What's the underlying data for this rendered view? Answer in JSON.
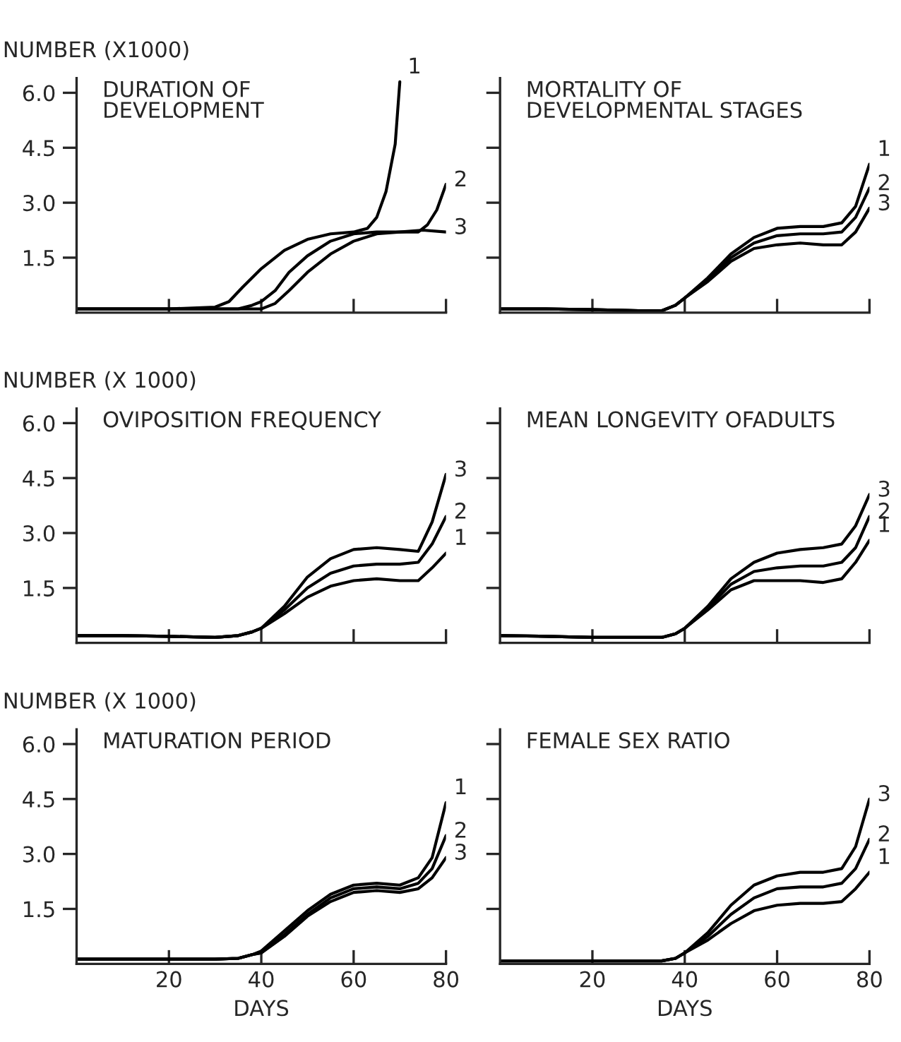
{
  "chart_data": [
    {
      "type": "line",
      "title": "DURATION OF\nDEVELOPMENT",
      "ylabel": "NUMBER (X1000)",
      "xlim": [
        0,
        80
      ],
      "ylim": [
        0,
        6.4
      ],
      "xticks": [
        {
          "value": 20,
          "label": null
        },
        {
          "value": 40,
          "label": null
        },
        {
          "value": 60,
          "label": null
        },
        {
          "value": 80,
          "label": null
        }
      ],
      "yticks": [
        {
          "value": 1.5,
          "label": "1.5"
        },
        {
          "value": 3,
          "label": "3.0"
        },
        {
          "value": 4.5,
          "label": "4.5"
        },
        {
          "value": 6,
          "label": "6.0"
        }
      ],
      "tick_labels": "y",
      "grid": false,
      "legend": false,
      "series": [
        {
          "name": "1",
          "color": "#000000",
          "x": [
            0,
            10,
            20,
            30,
            33,
            36,
            40,
            45,
            50,
            55,
            60,
            63,
            65,
            67,
            69,
            70
          ],
          "values": [
            0.1,
            0.1,
            0.1,
            0.15,
            0.3,
            0.7,
            1.2,
            1.7,
            2.0,
            2.15,
            2.2,
            2.3,
            2.6,
            3.3,
            4.6,
            6.3
          ]
        },
        {
          "name": "2",
          "color": "#000000",
          "x": [
            0,
            10,
            20,
            30,
            35,
            38,
            40,
            43,
            46,
            50,
            55,
            60,
            65,
            70,
            74,
            76,
            78,
            80
          ],
          "values": [
            0.1,
            0.1,
            0.1,
            0.1,
            0.1,
            0.2,
            0.3,
            0.6,
            1.1,
            1.55,
            1.95,
            2.15,
            2.2,
            2.2,
            2.2,
            2.4,
            2.8,
            3.5
          ]
        },
        {
          "name": "3",
          "color": "#000000",
          "x": [
            0,
            10,
            20,
            30,
            35,
            40,
            43,
            46,
            50,
            55,
            60,
            65,
            70,
            75,
            80
          ],
          "values": [
            0.1,
            0.1,
            0.1,
            0.1,
            0.1,
            0.1,
            0.25,
            0.6,
            1.1,
            1.6,
            1.95,
            2.15,
            2.2,
            2.25,
            2.2
          ]
        }
      ]
    },
    {
      "type": "line",
      "title": "MORTALITY OF\nDEVELOPMENTAL STAGES",
      "x": [
        0,
        10,
        20,
        30,
        35,
        38,
        40,
        45,
        50,
        55,
        60,
        65,
        70,
        74,
        77,
        80
      ],
      "xlim": [
        0,
        80
      ],
      "ylim": [
        0,
        6.4
      ],
      "xticks": [
        {
          "value": 20,
          "label": null
        },
        {
          "value": 40,
          "label": null
        },
        {
          "value": 60,
          "label": null
        },
        {
          "value": 80,
          "label": null
        }
      ],
      "yticks": [
        {
          "value": 1.5,
          "label": null
        },
        {
          "value": 3,
          "label": null
        },
        {
          "value": 4.5,
          "label": null
        },
        {
          "value": 6,
          "label": null
        }
      ],
      "tick_labels": false,
      "grid": false,
      "legend": false,
      "series": [
        {
          "name": "1",
          "color": "#000000",
          "values": [
            0.1,
            0.1,
            0.08,
            0.05,
            0.05,
            0.2,
            0.4,
            0.95,
            1.6,
            2.05,
            2.3,
            2.35,
            2.35,
            2.45,
            2.9,
            4.05
          ]
        },
        {
          "name": "2",
          "color": "#000000",
          "values": [
            0.1,
            0.1,
            0.08,
            0.05,
            0.05,
            0.2,
            0.4,
            0.9,
            1.5,
            1.9,
            2.1,
            2.15,
            2.15,
            2.2,
            2.6,
            3.4
          ]
        },
        {
          "name": "3",
          "color": "#000000",
          "values": [
            0.1,
            0.1,
            0.08,
            0.05,
            0.05,
            0.2,
            0.4,
            0.85,
            1.4,
            1.75,
            1.85,
            1.9,
            1.85,
            1.85,
            2.2,
            2.85
          ]
        }
      ]
    },
    {
      "type": "line",
      "title": "OVIPOSITION FREQUENCY",
      "ylabel": "NUMBER (X 1000)",
      "x": [
        0,
        10,
        20,
        30,
        35,
        38,
        40,
        45,
        50,
        55,
        60,
        65,
        70,
        74,
        77,
        80
      ],
      "xlim": [
        0,
        80
      ],
      "ylim": [
        0,
        6.4
      ],
      "xticks": [
        {
          "value": 20,
          "label": null
        },
        {
          "value": 40,
          "label": null
        },
        {
          "value": 60,
          "label": null
        },
        {
          "value": 80,
          "label": null
        }
      ],
      "yticks": [
        {
          "value": 1.5,
          "label": "1.5"
        },
        {
          "value": 3,
          "label": "3.0"
        },
        {
          "value": 4.5,
          "label": "4.5"
        },
        {
          "value": 6,
          "label": "6.0"
        }
      ],
      "tick_labels": "y",
      "grid": false,
      "legend": false,
      "series": [
        {
          "name": "1",
          "color": "#000000",
          "values": [
            0.2,
            0.2,
            0.18,
            0.15,
            0.2,
            0.3,
            0.4,
            0.8,
            1.25,
            1.55,
            1.7,
            1.75,
            1.7,
            1.7,
            2.05,
            2.45
          ]
        },
        {
          "name": "2",
          "color": "#000000",
          "values": [
            0.2,
            0.2,
            0.18,
            0.15,
            0.2,
            0.3,
            0.4,
            0.9,
            1.5,
            1.9,
            2.1,
            2.15,
            2.15,
            2.2,
            2.7,
            3.45
          ]
        },
        {
          "name": "3",
          "color": "#000000",
          "values": [
            0.2,
            0.2,
            0.18,
            0.15,
            0.2,
            0.3,
            0.4,
            1.0,
            1.8,
            2.3,
            2.55,
            2.6,
            2.55,
            2.5,
            3.3,
            4.6
          ]
        }
      ]
    },
    {
      "type": "line",
      "title": "MEAN LONGEVITY OFADULTS",
      "x": [
        0,
        10,
        20,
        30,
        35,
        38,
        40,
        45,
        50,
        55,
        60,
        65,
        70,
        74,
        77,
        80
      ],
      "xlim": [
        0,
        80
      ],
      "ylim": [
        0,
        6.4
      ],
      "xticks": [
        {
          "value": 20,
          "label": null
        },
        {
          "value": 40,
          "label": null
        },
        {
          "value": 60,
          "label": null
        },
        {
          "value": 80,
          "label": null
        }
      ],
      "yticks": [
        {
          "value": 1.5,
          "label": null
        },
        {
          "value": 3,
          "label": null
        },
        {
          "value": 4.5,
          "label": null
        },
        {
          "value": 6,
          "label": null
        }
      ],
      "tick_labels": false,
      "grid": false,
      "legend": false,
      "series": [
        {
          "name": "1",
          "color": "#000000",
          "values": [
            0.2,
            0.18,
            0.15,
            0.15,
            0.15,
            0.25,
            0.4,
            0.9,
            1.45,
            1.7,
            1.7,
            1.7,
            1.65,
            1.75,
            2.2,
            2.8
          ]
        },
        {
          "name": "2",
          "color": "#000000",
          "values": [
            0.2,
            0.18,
            0.15,
            0.15,
            0.15,
            0.25,
            0.4,
            0.95,
            1.6,
            1.95,
            2.05,
            2.1,
            2.1,
            2.2,
            2.6,
            3.45
          ]
        },
        {
          "name": "3",
          "color": "#000000",
          "values": [
            0.2,
            0.18,
            0.15,
            0.15,
            0.15,
            0.25,
            0.4,
            1.0,
            1.75,
            2.2,
            2.45,
            2.55,
            2.6,
            2.7,
            3.2,
            4.05
          ]
        }
      ]
    },
    {
      "type": "line",
      "title": "MATURATION PERIOD",
      "ylabel": "NUMBER (X 1000)",
      "xlabel": "DAYS",
      "x": [
        0,
        10,
        20,
        30,
        35,
        38,
        40,
        45,
        50,
        55,
        60,
        65,
        70,
        74,
        77,
        80
      ],
      "xlim": [
        0,
        80
      ],
      "ylim": [
        0,
        6.4
      ],
      "xticks": [
        20,
        40,
        60,
        80
      ],
      "yticks": [
        {
          "value": 1.5,
          "label": "1.5"
        },
        {
          "value": 3,
          "label": "3.0"
        },
        {
          "value": 4.5,
          "label": "4.5"
        },
        {
          "value": 6,
          "label": "6.0"
        }
      ],
      "grid": false,
      "legend": false,
      "series": [
        {
          "name": "1",
          "color": "#000000",
          "values": [
            0.13,
            0.13,
            0.13,
            0.13,
            0.15,
            0.25,
            0.35,
            0.9,
            1.45,
            1.9,
            2.15,
            2.2,
            2.15,
            2.35,
            2.9,
            4.4
          ]
        },
        {
          "name": "2",
          "color": "#000000",
          "values": [
            0.13,
            0.13,
            0.13,
            0.13,
            0.15,
            0.25,
            0.3,
            0.8,
            1.35,
            1.8,
            2.05,
            2.1,
            2.05,
            2.2,
            2.6,
            3.5
          ]
        },
        {
          "name": "3",
          "color": "#000000",
          "values": [
            0.13,
            0.13,
            0.13,
            0.13,
            0.15,
            0.25,
            0.3,
            0.75,
            1.3,
            1.7,
            1.95,
            2.0,
            1.95,
            2.05,
            2.35,
            2.9
          ]
        }
      ]
    },
    {
      "type": "line",
      "title": "FEMALE SEX RATIO",
      "xlabel": "DAYS",
      "x": [
        0,
        10,
        20,
        30,
        35,
        38,
        40,
        45,
        50,
        55,
        60,
        65,
        70,
        74,
        77,
        80
      ],
      "xlim": [
        0,
        80
      ],
      "ylim": [
        0,
        6.4
      ],
      "xticks": [
        20,
        40,
        60,
        80
      ],
      "yticks": [
        {
          "value": 1.5,
          "label": null
        },
        {
          "value": 3,
          "label": null
        },
        {
          "value": 4.5,
          "label": null
        },
        {
          "value": 6,
          "label": null
        }
      ],
      "tick_labels": "x",
      "grid": false,
      "legend": false,
      "series": [
        {
          "name": "1",
          "color": "#000000",
          "values": [
            0.08,
            0.08,
            0.08,
            0.08,
            0.08,
            0.15,
            0.3,
            0.65,
            1.1,
            1.45,
            1.6,
            1.65,
            1.65,
            1.7,
            2.05,
            2.5
          ]
        },
        {
          "name": "2",
          "color": "#000000",
          "values": [
            0.08,
            0.08,
            0.08,
            0.08,
            0.08,
            0.15,
            0.3,
            0.75,
            1.35,
            1.8,
            2.05,
            2.1,
            2.1,
            2.2,
            2.6,
            3.4
          ]
        },
        {
          "name": "3",
          "color": "#000000",
          "values": [
            0.08,
            0.08,
            0.08,
            0.08,
            0.08,
            0.15,
            0.3,
            0.85,
            1.6,
            2.15,
            2.4,
            2.5,
            2.5,
            2.6,
            3.2,
            4.5
          ]
        }
      ]
    }
  ]
}
